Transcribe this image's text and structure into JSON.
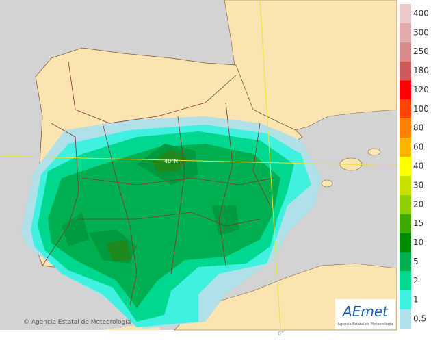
{
  "map": {
    "lat_label": "40°N",
    "lon_label": "0°",
    "copyright": "© Agencia Estatal de Meteorología",
    "logo": {
      "name": "AEmet",
      "subtitle": "Agencia Estatal de Meteorología"
    }
  },
  "legend": [
    {
      "value": 400,
      "color": "#ebcaca"
    },
    {
      "value": 300,
      "color": "#e2aaaa"
    },
    {
      "value": 250,
      "color": "#d98a8a"
    },
    {
      "value": 180,
      "color": "#cf5a5a"
    },
    {
      "value": 120,
      "color": "#ff0000"
    },
    {
      "value": 100,
      "color": "#ff4400"
    },
    {
      "value": 80,
      "color": "#ff8000"
    },
    {
      "value": 60,
      "color": "#ffb400"
    },
    {
      "value": 40,
      "color": "#ffff00"
    },
    {
      "value": 30,
      "color": "#c8e000"
    },
    {
      "value": 20,
      "color": "#8cd000"
    },
    {
      "value": 15,
      "color": "#3caa00"
    },
    {
      "value": 10,
      "color": "#008c00"
    },
    {
      "value": 5,
      "color": "#00b050"
    },
    {
      "value": 2,
      "color": "#00d890"
    },
    {
      "value": 1,
      "color": "#40f0e0"
    },
    {
      "value": 0.5,
      "color": "#b0e0e8"
    }
  ]
}
